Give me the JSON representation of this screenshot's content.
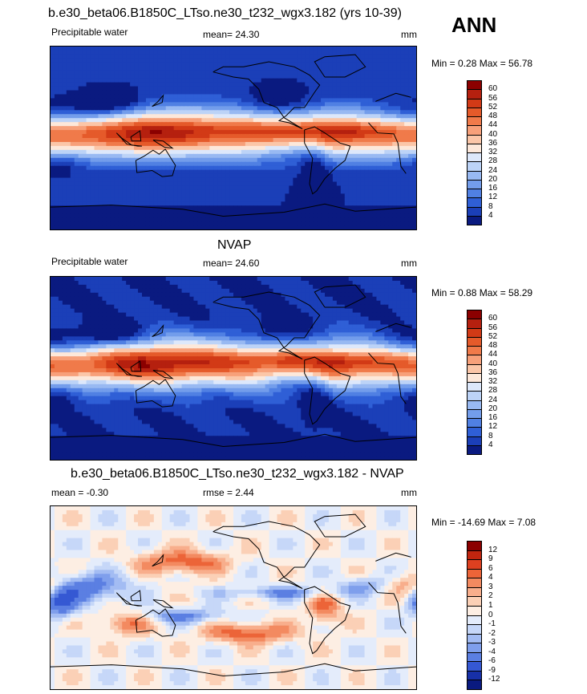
{
  "header": {
    "title_top": "b.e30_beta06.B1850C_LTso.ne30_t232_wgx3.182 (yrs 10-39)",
    "season": "ANN"
  },
  "panels": [
    {
      "id": "model",
      "title": "",
      "left_label": "Precipitable water",
      "center_label": "mean=  24.30",
      "right_label": "mm",
      "minmax": "Min =   0.28 Max =  56.78",
      "levels": [
        "60",
        "56",
        "52",
        "48",
        "44",
        "40",
        "36",
        "32",
        "28",
        "24",
        "20",
        "16",
        "12",
        "8",
        "4"
      ],
      "colors": [
        "#8b0000",
        "#b5200f",
        "#d23a16",
        "#e55a2a",
        "#f07a4a",
        "#f7a07a",
        "#fbc6a8",
        "#fde8da",
        "#dde8fb",
        "#bcd3f7",
        "#98b9f2",
        "#739deb",
        "#5080e3",
        "#2f5fd6",
        "#1b3fb8",
        "#0a1a80"
      ],
      "field": "pw"
    },
    {
      "id": "obs",
      "title": "NVAP",
      "left_label": "Precipitable water",
      "center_label": "mean=  24.60",
      "right_label": "mm",
      "minmax": "Min =   0.88 Max =  58.29",
      "levels": [
        "60",
        "56",
        "52",
        "48",
        "44",
        "40",
        "36",
        "32",
        "28",
        "24",
        "20",
        "16",
        "12",
        "8",
        "4"
      ],
      "colors": [
        "#8b0000",
        "#b5200f",
        "#d23a16",
        "#e55a2a",
        "#f07a4a",
        "#f7a07a",
        "#fbc6a8",
        "#fde8da",
        "#dde8fb",
        "#bcd3f7",
        "#98b9f2",
        "#739deb",
        "#5080e3",
        "#2f5fd6",
        "#1b3fb8",
        "#0a1a80"
      ],
      "field": "pw2"
    },
    {
      "id": "diff",
      "title": "b.e30_beta06.B1850C_LTso.ne30_t232_wgx3.182 - NVAP",
      "left_label": "mean =  -0.30",
      "center_label": "rmse =   2.44",
      "right_label": "mm",
      "minmax": "Min = -14.69 Max =   7.08",
      "levels": [
        "12",
        "9",
        "6",
        "4",
        "3",
        "2",
        "1",
        "0",
        "-1",
        "-2",
        "-3",
        "-4",
        "-6",
        "-9",
        "-12"
      ],
      "colors": [
        "#8b0000",
        "#c0250f",
        "#dd4020",
        "#ec6438",
        "#f38a60",
        "#f8ae8c",
        "#fbd0b6",
        "#fdeee3",
        "#e4ecfb",
        "#c6d7f8",
        "#a3bcf3",
        "#7f9fec",
        "#5b7fe2",
        "#3558d3",
        "#1730a8",
        "#0a1a80"
      ],
      "field": "diff"
    }
  ]
}
